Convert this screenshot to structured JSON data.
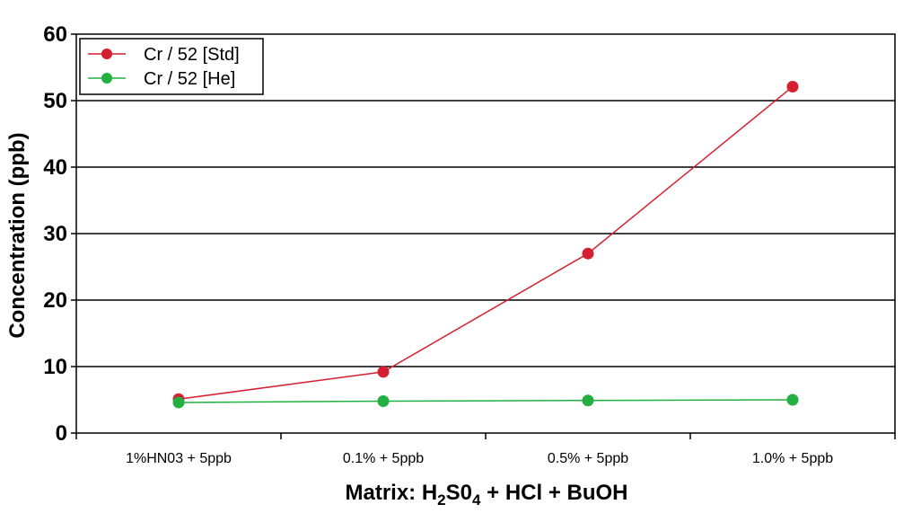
{
  "chart_data": {
    "type": "line",
    "categories": [
      "1%HN03 + 5ppb",
      "0.1% + 5ppb",
      "0.5% + 5ppb",
      "1.0% + 5ppb"
    ],
    "series": [
      {
        "name": "Cr / 52 [Std]",
        "color": "#d42030",
        "values": [
          5.1,
          9.2,
          27.0,
          52.1
        ]
      },
      {
        "name": "Cr / 52 [He]",
        "color": "#22b040",
        "values": [
          4.6,
          4.8,
          4.9,
          5.0
        ]
      }
    ],
    "title": "",
    "ylabel": "Concentration (ppb)",
    "xlabel": {
      "prefix": "Matrix: H",
      "sub1": "2",
      "mid": "S0",
      "sub2": "4",
      "suffix": " + HCl + BuOH"
    },
    "ylim": [
      0,
      60
    ],
    "yticks": [
      "0",
      "10",
      "20",
      "30",
      "40",
      "50",
      "60"
    ],
    "grid": true,
    "legend_position": "top-left"
  }
}
